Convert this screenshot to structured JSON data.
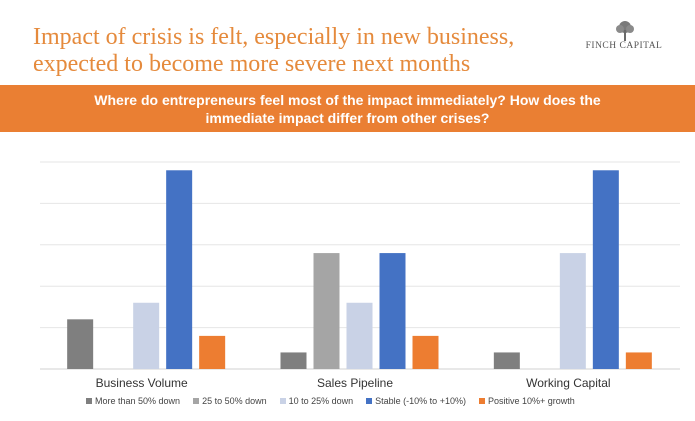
{
  "header": {
    "title_line1": "Impact of crisis is felt, especially in new business,",
    "title_line2": "expected to become more severe next months",
    "logo_text": "FINCH CAPITAL"
  },
  "banner": {
    "line1": "Where do entrepreneurs feel most of the impact immediately? How does the",
    "line2": "immediate impact differ from other crises?"
  },
  "chart_data": {
    "type": "bar",
    "categories": [
      "Business Volume",
      "Sales Pipeline",
      "Working Capital"
    ],
    "series": [
      {
        "name": "More than 50% down",
        "color": "#7f7f7f",
        "values": [
          12,
          4,
          4
        ]
      },
      {
        "name": "25 to 50% down",
        "color": "#a5a5a5",
        "values": [
          0,
          28,
          0
        ]
      },
      {
        "name": "10 to 25% down",
        "color": "#c9d2e6",
        "values": [
          16,
          16,
          28
        ]
      },
      {
        "name": "Stable (-10% to +10%)",
        "color": "#4472c4",
        "values": [
          48,
          28,
          48
        ]
      },
      {
        "name": "Positive 10%+ growth",
        "color": "#ed7d31",
        "values": [
          8,
          8,
          4
        ]
      }
    ],
    "ylim": [
      0,
      50
    ],
    "grid": true,
    "legend": "bottom"
  }
}
